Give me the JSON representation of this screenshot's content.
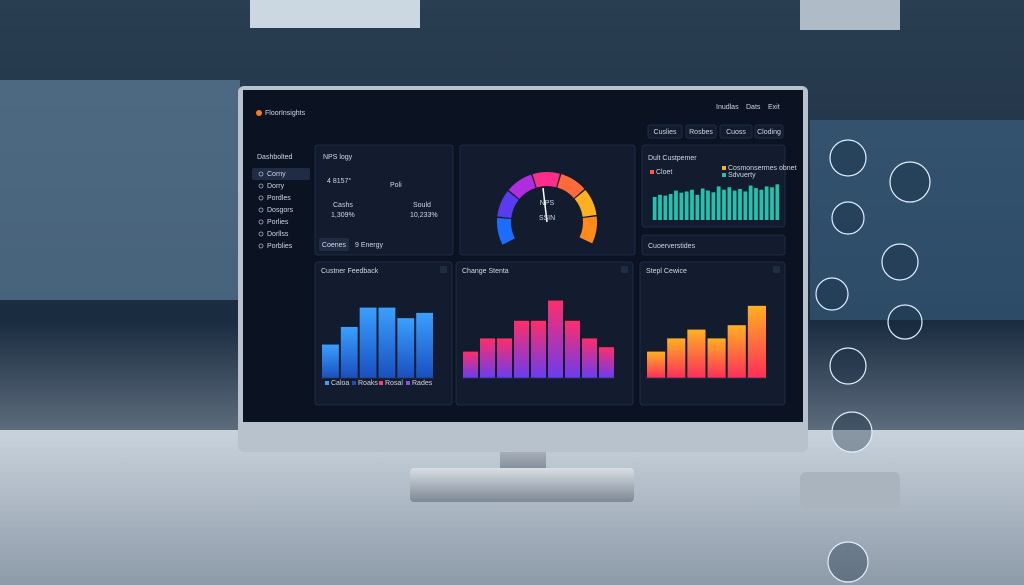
{
  "app": {
    "brand": "FloorInsights",
    "nav": [
      "Inudlas",
      "Dats",
      "Exit"
    ],
    "tabs": [
      "Cuslies",
      "Rosbes",
      "Cuoss",
      "Cloding"
    ]
  },
  "sidebar": {
    "title": "Dashbolted",
    "items": [
      "Corny",
      "Dorry",
      "Pordles",
      "Dosgors",
      "Porlies",
      "Dorllss",
      "Porblies"
    ]
  },
  "nps_card": {
    "title": "NPS logy",
    "value": "4 8157°",
    "unit": "Poli",
    "stats": [
      {
        "label": "Cashs",
        "value": "1,309%"
      },
      {
        "label": "Sould",
        "value": "10,233%"
      }
    ],
    "tabs": [
      "Coenes",
      "9 Energy"
    ]
  },
  "gauge": {
    "label": "NPS",
    "sublabel": "SSIN",
    "colors": [
      "#1e6bff",
      "#5a3cf0",
      "#b02ce0",
      "#ff2d8a",
      "#ff6a3a",
      "#ffb020",
      "#ff8a1a"
    ]
  },
  "trend_card": {
    "title": "Dult Custpemer",
    "legend": [
      "Cloet",
      "Cosmonsermes obnet",
      "Sdvuerty"
    ],
    "footer": "Cuoerverstides",
    "color": "#1fc4b0",
    "ylim": [
      0,
      100
    ],
    "values": [
      55,
      60,
      58,
      62,
      70,
      65,
      68,
      72,
      60,
      75,
      70,
      66,
      80,
      72,
      78,
      70,
      74,
      68,
      82,
      76,
      72,
      80,
      78,
      85
    ]
  },
  "charts": [
    {
      "type": "bar",
      "title": "Custner Feedback",
      "colors": [
        "#3aa0ff",
        "#1a4fc0"
      ],
      "ylim": [
        0,
        100
      ],
      "values": [
        38,
        58,
        80,
        80,
        68,
        74
      ],
      "legend": [
        "Caloa",
        "Roaks",
        "Rosal",
        "Rades"
      ]
    },
    {
      "type": "bar",
      "title": "Change Stenta",
      "colors": [
        "#ff2d6a",
        "#6a3cf0"
      ],
      "ylim": [
        0,
        100
      ],
      "values": [
        30,
        45,
        45,
        65,
        65,
        88,
        65,
        45,
        35
      ]
    },
    {
      "type": "bar",
      "title": "Stepl Cewice",
      "colors": [
        "#ffb020",
        "#ff2d5a"
      ],
      "ylim": [
        0,
        100
      ],
      "values": [
        30,
        45,
        55,
        45,
        60,
        82
      ]
    }
  ]
}
